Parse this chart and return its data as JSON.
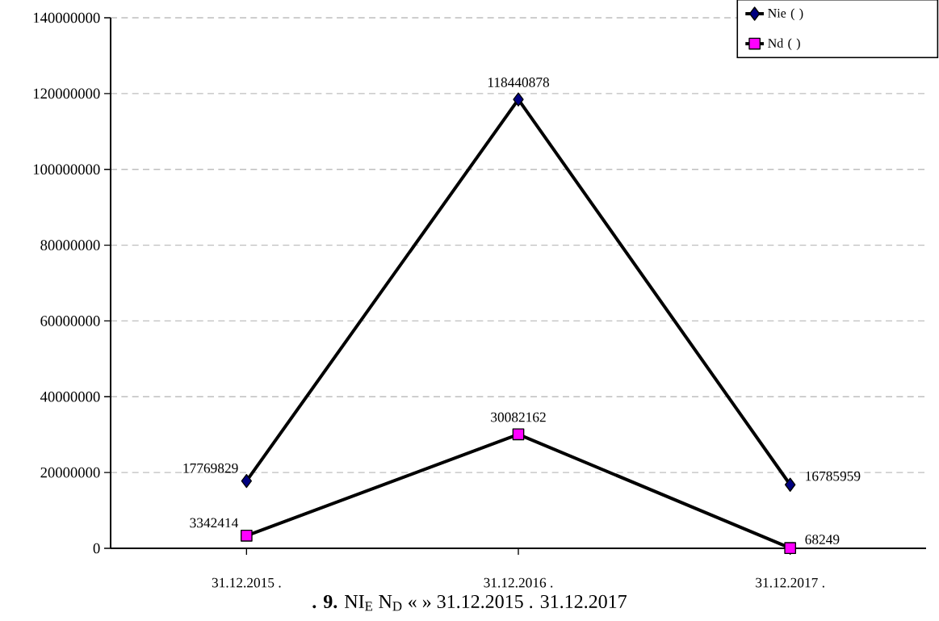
{
  "chart_data": {
    "type": "line",
    "categories": [
      "31.12.2015 .",
      "31.12.2016 .",
      "31.12.2017 ."
    ],
    "series": [
      {
        "name": "Nie (                    )",
        "color": "#000080",
        "marker": "diamond",
        "values": [
          17769829,
          118440878,
          16785959
        ]
      },
      {
        "name": "Nd (                              )",
        "color": "#ff00ff",
        "marker": "square",
        "values": [
          3342414,
          30082162,
          68249
        ]
      }
    ],
    "ylim": [
      0,
      140000000
    ],
    "yticks": [
      0,
      20000000,
      40000000,
      60000000,
      80000000,
      100000000,
      120000000,
      140000000
    ],
    "grid": "y",
    "legend": "top right",
    "data_labels": true,
    "line_style": "solid",
    "annotations": [
      "**. 9.**          NI$_{E}$   N$_{D}$      «            »                    31.12.2015 .    31.12.2017"
    ]
  }
}
